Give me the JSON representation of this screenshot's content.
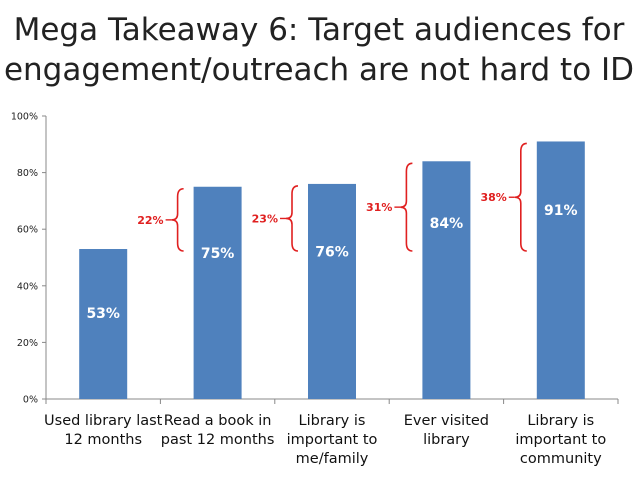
{
  "title": {
    "line1": "Mega Takeaway 6: Target audiences for",
    "line2": "engagement/outreach are not hard to ID"
  },
  "colors": {
    "bar": "#4f81bd",
    "bracket": "#e02020"
  },
  "chart_data": {
    "type": "bar",
    "title": "Mega Takeaway 6: Target audiences for engagement/outreach are not hard to ID",
    "categories": [
      [
        "Used library last",
        "12 months"
      ],
      [
        "Read a book in",
        "past 12 months"
      ],
      [
        "Library is",
        "important to",
        "me/family"
      ],
      [
        "Ever visited",
        "library"
      ],
      [
        "Library is",
        "important to",
        "community"
      ]
    ],
    "values": [
      53,
      75,
      76,
      84,
      91
    ],
    "value_labels": [
      "53%",
      "75%",
      "76%",
      "84%",
      "91%"
    ],
    "yticks": [
      "0%",
      "20%",
      "40%",
      "60%",
      "80%",
      "100%"
    ],
    "ylim": [
      0,
      100
    ],
    "grid": false,
    "annotations": [
      {
        "bar_index": 1,
        "label": "22%"
      },
      {
        "bar_index": 2,
        "label": "23%"
      },
      {
        "bar_index": 3,
        "label": "31%"
      },
      {
        "bar_index": 4,
        "label": "38%"
      }
    ]
  }
}
